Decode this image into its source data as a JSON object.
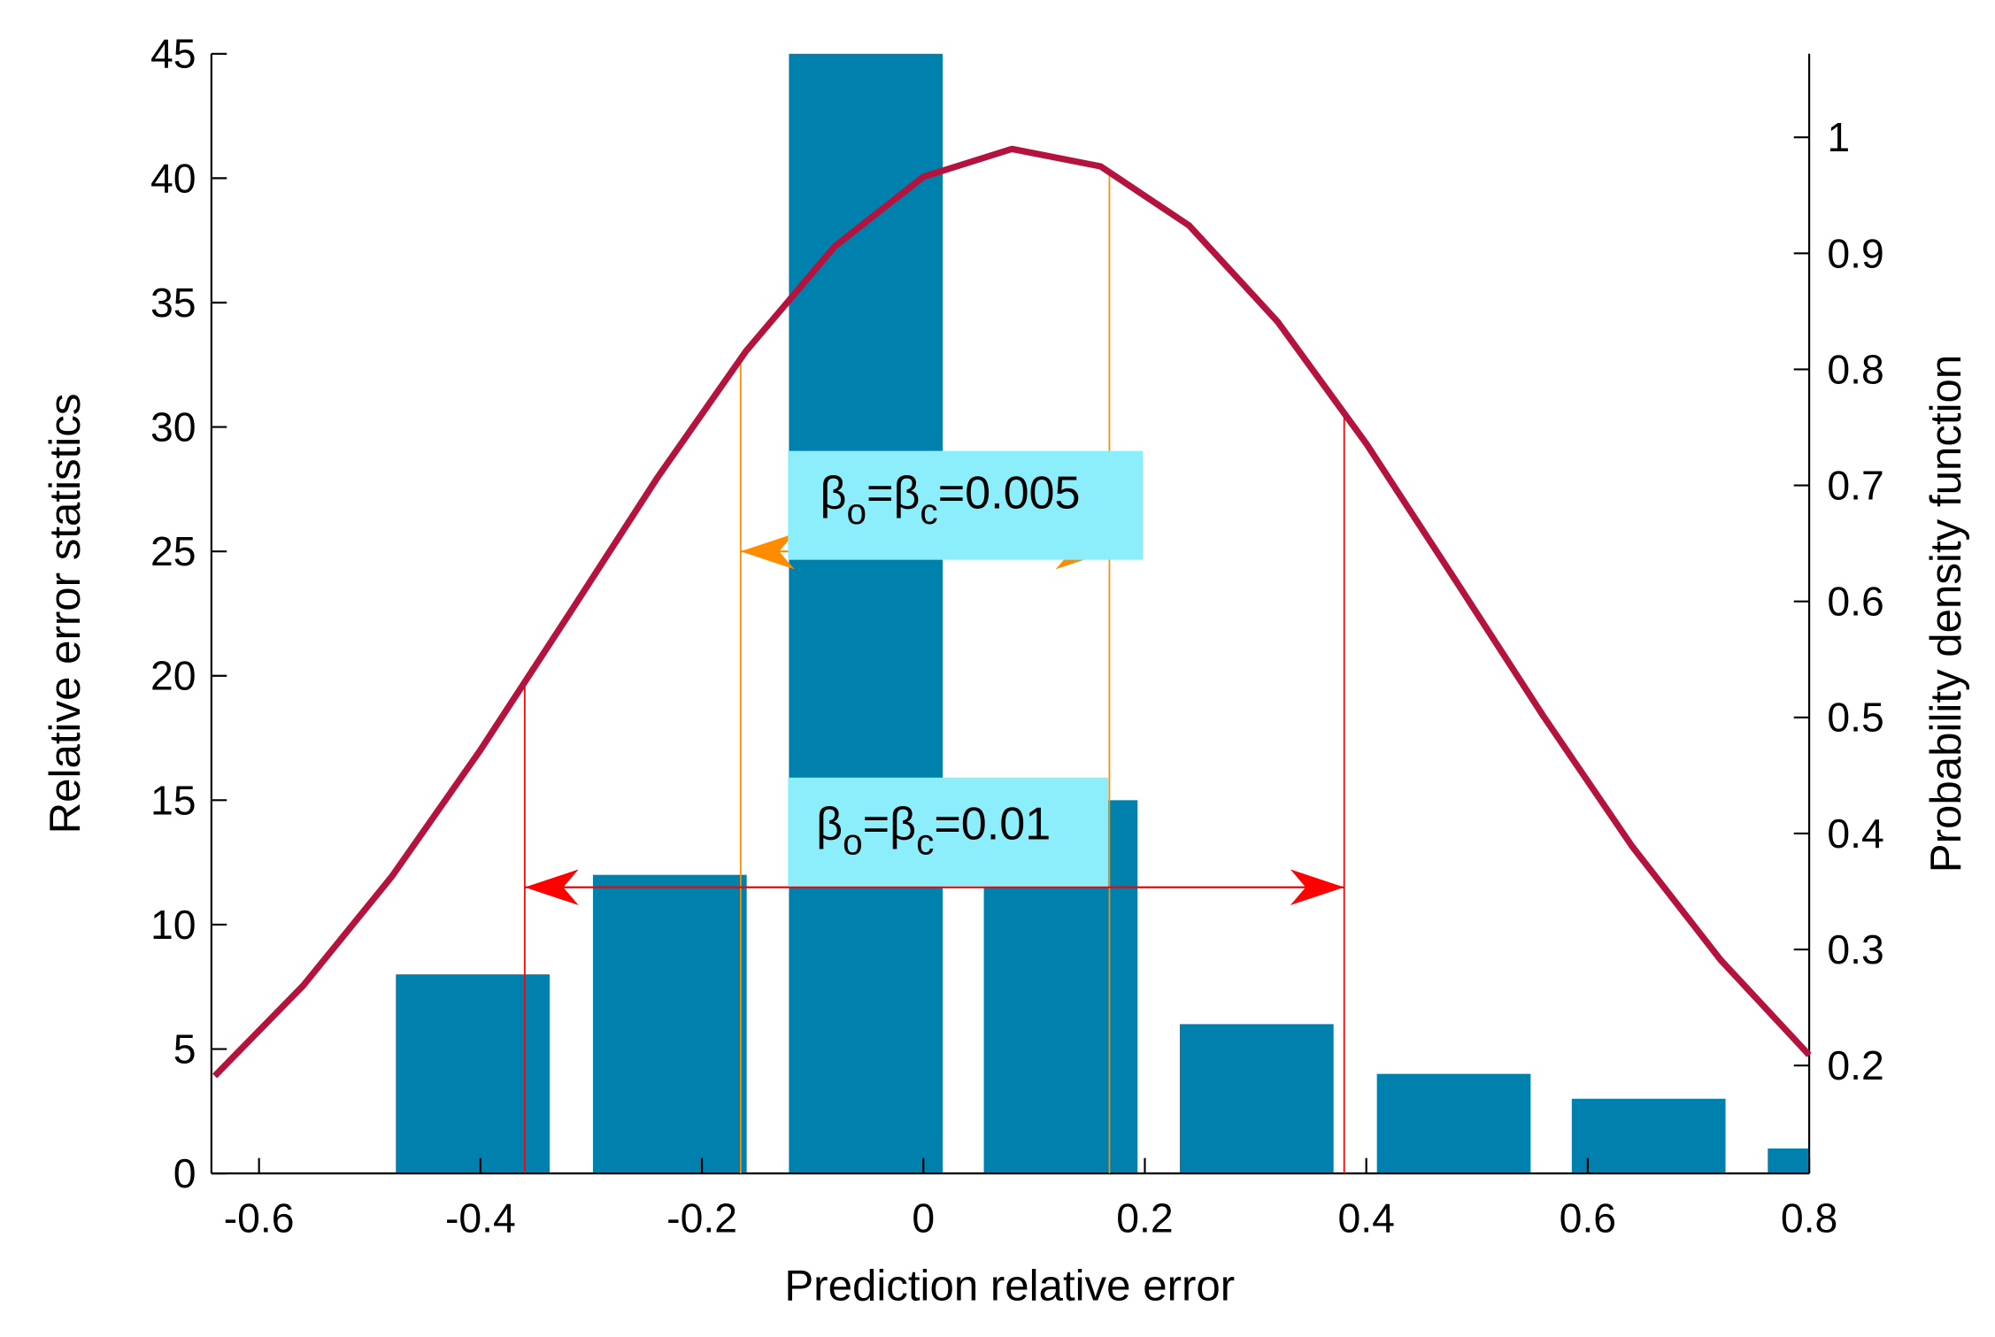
{
  "chart_data": {
    "type": "bar",
    "x_label": "Prediction relative error",
    "y_label": "Relative error statistics",
    "y2_label": "Probability density function",
    "x": [
      -0.407,
      -0.229,
      -0.052,
      0.124,
      0.301,
      0.479,
      0.655,
      0.832
    ],
    "values": [
      8,
      12,
      45,
      15,
      6,
      4,
      3,
      1
    ],
    "color": "#0080ad",
    "xlim": [
      -0.643,
      0.8
    ],
    "xticks": [
      -0.6,
      -0.4,
      -0.2,
      0,
      0.2,
      0.4,
      0.6,
      0.8
    ],
    "ylim": [
      0,
      45
    ],
    "yticks": [
      0,
      5,
      10,
      15,
      20,
      25,
      30,
      35,
      40,
      45
    ],
    "y2lim": [
      0.107,
      1.072
    ],
    "y2ticks": [
      0.2,
      0.3,
      0.4,
      0.5,
      0.6,
      0.7,
      0.8,
      0.9,
      1
    ],
    "lines": [
      {
        "type": "line",
        "axis": "y2",
        "color": "#b5123e",
        "x": [
          -0.64,
          -0.56,
          -0.48,
          -0.4,
          -0.32,
          -0.24,
          -0.16,
          -0.08,
          0,
          0.08,
          0.16,
          0.24,
          0.32,
          0.4,
          0.48,
          0.56,
          0.64,
          0.72,
          0.8
        ],
        "values": [
          0.191,
          0.269,
          0.363,
          0.472,
          0.589,
          0.707,
          0.816,
          0.906,
          0.966,
          0.99,
          0.975,
          0.924,
          0.841,
          0.736,
          0.619,
          0.501,
          0.389,
          0.291,
          0.209
        ]
      }
    ],
    "annotations": [
      {
        "parts": [
          "β",
          "o",
          "=β",
          "c",
          "=0.005"
        ],
        "interval": [
          -0.165,
          0.168
        ],
        "y": 25,
        "color": "#ff8c00"
      },
      {
        "parts": [
          "β",
          "o",
          "=β",
          "c",
          "=0.01"
        ],
        "interval": [
          -0.36,
          0.38
        ],
        "y": 11.5,
        "color": "#ff0000"
      }
    ]
  }
}
